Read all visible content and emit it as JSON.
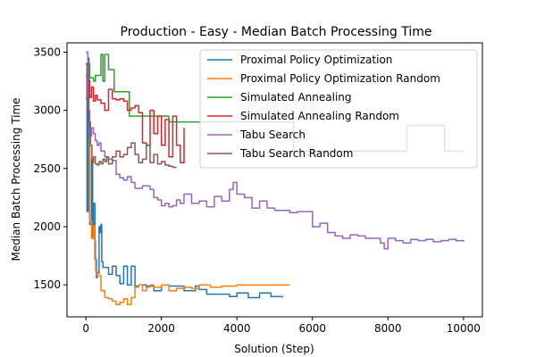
{
  "chart_data": {
    "type": "line",
    "title": "Production - Easy - Median Batch Processing Time",
    "xlabel": "Solution (Step)",
    "ylabel": "Median Batch Processing Time",
    "xlim": [
      -500,
      10500
    ],
    "ylim": [
      1225,
      3580
    ],
    "xticks": [
      0,
      2000,
      4000,
      6000,
      8000,
      10000
    ],
    "yticks": [
      1500,
      2000,
      2500,
      3000,
      3500
    ],
    "grid": false,
    "legend_position": "top-right",
    "series": [
      {
        "name": "Proximal Policy Optimization",
        "color": "#1f77b4",
        "step": true,
        "x": [
          0,
          30,
          60,
          80,
          100,
          150,
          180,
          200,
          240,
          280,
          300,
          350,
          380,
          400,
          420,
          450,
          600,
          700,
          800,
          900,
          1000,
          1100,
          1200,
          1300,
          1400,
          1600,
          1800,
          2000,
          2200,
          2600,
          2900,
          3000,
          3200,
          3500,
          3800,
          4000,
          4300,
          4600,
          4900,
          5200
        ],
        "y": [
          3300,
          2130,
          3450,
          2850,
          2020,
          2580,
          1900,
          2200,
          1720,
          1560,
          1600,
          2000,
          1950,
          2020,
          1700,
          1650,
          1590,
          1660,
          1580,
          1510,
          1660,
          1500,
          1660,
          1490,
          1500,
          1490,
          1450,
          1500,
          1490,
          1450,
          1490,
          1460,
          1420,
          1420,
          1400,
          1430,
          1390,
          1430,
          1400,
          1390
        ]
      },
      {
        "name": "Proximal Policy Optimization Random",
        "color": "#ff7f0e",
        "step": true,
        "x": [
          0,
          50,
          100,
          150,
          200,
          230,
          260,
          300,
          400,
          500,
          600,
          700,
          800,
          900,
          1000,
          1100,
          1200,
          1300,
          1400,
          1500,
          1600,
          1700,
          1800,
          2000,
          2200,
          2400,
          2600,
          2800,
          3000,
          3300,
          3600,
          4000,
          4500,
          5000,
          5400
        ],
        "y": [
          3400,
          3000,
          2050,
          1900,
          2010,
          1870,
          1620,
          1580,
          1450,
          1390,
          1380,
          1360,
          1330,
          1350,
          1380,
          1330,
          1390,
          1480,
          1500,
          1450,
          1480,
          1500,
          1480,
          1500,
          1450,
          1470,
          1480,
          1470,
          1500,
          1480,
          1490,
          1500,
          1500,
          1500,
          1500
        ]
      },
      {
        "name": "Simulated Annealing",
        "color": "#2ca02c",
        "step": true,
        "x": [
          0,
          100,
          200,
          250,
          350,
          400,
          450,
          500,
          600,
          750,
          1050,
          1150,
          1300,
          1800,
          2200,
          2600,
          3000,
          3500,
          4000,
          5000,
          5500,
          6000,
          7000,
          8000,
          8500,
          9000,
          9500,
          10000
        ],
        "y": [
          3400,
          3280,
          3250,
          3300,
          3300,
          3480,
          3250,
          3480,
          3350,
          3160,
          3160,
          2950,
          2950,
          2950,
          2900,
          2900,
          2900,
          2900,
          2900,
          2900,
          2650,
          2650,
          2650,
          2650,
          2870,
          2870,
          2650,
          2650
        ]
      },
      {
        "name": "Simulated Annealing Random",
        "color": "#d62728",
        "step": true,
        "x": [
          0,
          30,
          60,
          100,
          150,
          200,
          250,
          300,
          400,
          500,
          600,
          700,
          800,
          900,
          1000,
          1100,
          1200,
          1300,
          1400,
          1500,
          1600,
          1700,
          1800,
          1900,
          2000,
          2100,
          2200,
          2300,
          2400,
          2500,
          2600
        ],
        "y": [
          3400,
          3100,
          3260,
          3110,
          3200,
          3080,
          3130,
          3090,
          3060,
          3000,
          3180,
          3100,
          3090,
          3100,
          3080,
          3000,
          3020,
          3040,
          2980,
          2720,
          2700,
          3000,
          2800,
          2950,
          2700,
          2920,
          2600,
          2950,
          2700,
          2550,
          2850
        ]
      },
      {
        "name": "Tabu Search",
        "color": "#9467bd",
        "step": true,
        "x": [
          0,
          50,
          100,
          150,
          200,
          250,
          300,
          350,
          400,
          500,
          600,
          700,
          800,
          900,
          1000,
          1100,
          1200,
          1300,
          1500,
          1700,
          1800,
          1900,
          2000,
          2100,
          2200,
          2300,
          2400,
          2500,
          2600,
          2800,
          3000,
          3200,
          3400,
          3600,
          3800,
          3900,
          4000,
          4200,
          4400,
          4600,
          4800,
          5000,
          5200,
          5400,
          5600,
          5800,
          6000,
          6200,
          6400,
          6600,
          6800,
          7000,
          7200,
          7400,
          7600,
          7800,
          7900,
          8000,
          8200,
          8400,
          8600,
          8800,
          9000,
          9200,
          9400,
          9600,
          9800,
          10000
        ],
        "y": [
          3500,
          3000,
          2780,
          2850,
          2800,
          2740,
          2700,
          2720,
          2650,
          2600,
          2580,
          2570,
          2450,
          2420,
          2400,
          2430,
          2380,
          2330,
          2350,
          2320,
          2250,
          2230,
          2180,
          2200,
          2170,
          2180,
          2230,
          2200,
          2280,
          2200,
          2220,
          2170,
          2260,
          2220,
          2320,
          2380,
          2280,
          2250,
          2160,
          2220,
          2160,
          2140,
          2140,
          2120,
          2130,
          2130,
          2000,
          2030,
          1950,
          1920,
          1900,
          1930,
          1920,
          1900,
          1900,
          1860,
          1810,
          1900,
          1880,
          1860,
          1890,
          1880,
          1890,
          1870,
          1880,
          1890,
          1880,
          1870
        ]
      },
      {
        "name": "Tabu Search Random",
        "color": "#8c564b",
        "step": true,
        "x": [
          0,
          40,
          80,
          120,
          160,
          200,
          250,
          300,
          350,
          400,
          450,
          500,
          550,
          600,
          700,
          800,
          900,
          1000,
          1100,
          1200,
          1300,
          1400,
          1500,
          1600,
          1700,
          1800,
          1900,
          2000,
          2100,
          2200,
          2300,
          2400
        ],
        "y": [
          3100,
          3000,
          2900,
          2700,
          2550,
          2600,
          2540,
          2530,
          2560,
          2540,
          2580,
          2560,
          2600,
          2540,
          2600,
          2650,
          2600,
          2620,
          2680,
          2720,
          2620,
          2550,
          2580,
          2700,
          2550,
          2620,
          2540,
          2560,
          2530,
          2520,
          2510,
          2510
        ]
      }
    ]
  }
}
